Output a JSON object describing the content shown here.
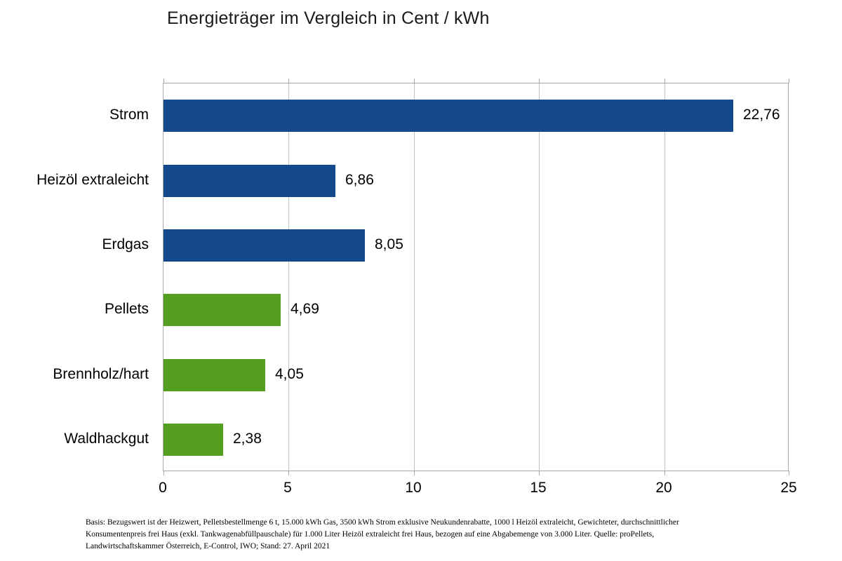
{
  "chart_data": {
    "type": "bar",
    "orientation": "horizontal",
    "title": "Energieträger im Vergleich in Cent / kWh",
    "categories": [
      "Strom",
      "Heizöl extraleicht",
      "Erdgas",
      "Pellets",
      "Brennholz/hart",
      "Waldhackgut"
    ],
    "values": [
      22.76,
      6.86,
      8.05,
      4.69,
      4.05,
      2.38
    ],
    "value_labels": [
      "22,76",
      "6,86",
      "8,05",
      "4,69",
      "4,05",
      "2,38"
    ],
    "bar_colors": [
      "#15498e",
      "#15498e",
      "#15498e",
      "#549e20",
      "#549e20",
      "#549e20"
    ],
    "xlabel": "",
    "ylabel": "",
    "xlim": [
      0,
      25
    ],
    "x_ticks": [
      "0",
      "5",
      "10",
      "15",
      "20",
      "25"
    ],
    "grid": "vertical-gridlines-on",
    "legend": "none",
    "decimal_separator": ","
  },
  "colors": {
    "bar_blue": "#15498e",
    "bar_green": "#549e20",
    "gridline": "#c3c3c3",
    "axis": "#a9a9a9",
    "text": "#000000"
  },
  "footnote_lines": [
    "Basis: Bezugswert ist der Heizwert, Pelletsbestellmenge 6 t, 15.000 kWh Gas, 3500 kWh Strom exklusive Neukundenrabatte, 1000 l Heizöl  extraleicht, Gewichteter, durchschnittlicher",
    "Konsumentenpreis frei Haus (exkl. Tankwagenabfüllpauschale) für 1.000 Liter Heizöl extraleicht frei Haus, bezogen auf eine Abgabemenge von 3.000 Liter.  Quelle: proPellets,",
    "Landwirtschaftskammer Österreich, E-Control, IWO; Stand: 27. April 2021"
  ]
}
